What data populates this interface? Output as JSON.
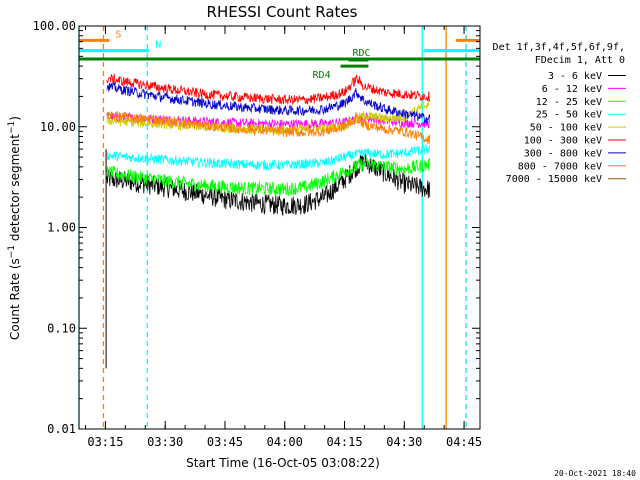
{
  "chart_data": {
    "type": "line",
    "title": "RHESSI Count Rates",
    "xlabel": "Start Time (16-Oct-05 03:08:22)",
    "ylabel_main": "Count Rate (s",
    "ylabel_sup": "−1",
    "ylabel_rest": " detector segment",
    "ylabel_end": ")",
    "y_scale": "log",
    "ylim": [
      0.01,
      100
    ],
    "xlim": [
      "03:08:22",
      "04:49:00"
    ],
    "x_ticks": [
      "03:15",
      "03:30",
      "03:45",
      "04:00",
      "04:15",
      "04:30",
      "04:45"
    ],
    "y_ticks": [
      "100.00",
      "10.00",
      "1.00",
      "0.10",
      "0.01"
    ],
    "legend_header": [
      "Det 1f,3f,4f,5f,6f,9f,",
      "FDecim 1, Att 0"
    ],
    "legend_position": "right",
    "series": [
      {
        "name": "3 - 6 keV",
        "color": "#000000",
        "x": [
          "03:16",
          "03:20",
          "03:25",
          "03:30",
          "03:35",
          "03:40",
          "03:45",
          "03:50",
          "03:55",
          "04:00",
          "04:05",
          "04:10",
          "04:15",
          "04:18",
          "04:20",
          "04:25",
          "04:30",
          "04:36"
        ],
        "values": [
          3.0,
          2.9,
          2.7,
          2.5,
          2.3,
          2.1,
          1.9,
          1.8,
          1.7,
          1.65,
          1.7,
          2.0,
          3.0,
          4.0,
          4.5,
          3.5,
          2.7,
          2.4
        ]
      },
      {
        "name": "6 - 12 keV",
        "color": "#ff00ff",
        "x": [
          "03:16",
          "03:20",
          "03:30",
          "03:40",
          "03:50",
          "04:00",
          "04:10",
          "04:15",
          "04:20",
          "04:25",
          "04:30",
          "04:36"
        ],
        "values": [
          12.5,
          12.2,
          11.8,
          11.2,
          10.8,
          10.6,
          10.7,
          11.0,
          12.5,
          11.5,
          11.0,
          10.8
        ]
      },
      {
        "name": "12 - 25 keV",
        "color": "#00ff00",
        "x": [
          "03:16",
          "03:20",
          "03:25",
          "03:30",
          "03:40",
          "03:50",
          "04:00",
          "04:05",
          "04:10",
          "04:15",
          "04:20",
          "04:25",
          "04:30",
          "04:36"
        ],
        "values": [
          3.5,
          3.3,
          3.1,
          2.9,
          2.6,
          2.45,
          2.4,
          2.5,
          2.9,
          3.6,
          4.3,
          4.0,
          3.8,
          4.2
        ]
      },
      {
        "name": "25 - 50 keV",
        "color": "#00ffff",
        "x": [
          "03:16",
          "03:20",
          "03:30",
          "03:40",
          "03:50",
          "04:00",
          "04:10",
          "04:15",
          "04:20",
          "04:25",
          "04:30",
          "04:36"
        ],
        "values": [
          5.2,
          5.0,
          4.7,
          4.4,
          4.2,
          4.15,
          4.4,
          5.0,
          5.5,
          5.3,
          5.5,
          6.0
        ]
      },
      {
        "name": "50 - 100 keV",
        "color": "#cccc00",
        "x": [
          "03:16",
          "03:20",
          "03:30",
          "03:40",
          "03:50",
          "04:00",
          "04:10",
          "04:15",
          "04:20",
          "04:25",
          "04:30",
          "04:36"
        ],
        "values": [
          11.5,
          11.2,
          10.6,
          10.0,
          9.6,
          9.3,
          9.6,
          10.3,
          13.0,
          12.0,
          12.5,
          17.0
        ]
      },
      {
        "name": "100 - 300 keV",
        "color": "#ff0000",
        "x": [
          "03:16",
          "03:20",
          "03:25",
          "03:30",
          "03:40",
          "03:50",
          "04:00",
          "04:05",
          "04:10",
          "04:15",
          "04:18",
          "04:20",
          "04:25",
          "04:30",
          "04:36"
        ],
        "values": [
          30,
          28,
          26,
          24,
          21,
          19.5,
          18.5,
          18.5,
          19.5,
          22,
          30,
          25,
          22,
          21,
          20
        ]
      },
      {
        "name": "300 - 800 keV",
        "color": "#0000cc",
        "x": [
          "03:16",
          "03:20",
          "03:25",
          "03:30",
          "03:40",
          "03:50",
          "04:00",
          "04:05",
          "04:10",
          "04:15",
          "04:18",
          "04:20",
          "04:25",
          "04:30",
          "04:36"
        ],
        "values": [
          25,
          23,
          21,
          19.5,
          17,
          15.5,
          14.5,
          14.5,
          15,
          17,
          22,
          18,
          15,
          13.5,
          12
        ]
      },
      {
        "name": "800 - 7000 keV",
        "color": "#ff8000",
        "x": [
          "03:16",
          "03:20",
          "03:30",
          "03:40",
          "03:50",
          "04:00",
          "04:05",
          "04:10",
          "04:15",
          "04:18",
          "04:20",
          "04:25",
          "04:30",
          "04:36"
        ],
        "values": [
          13,
          12.5,
          11.5,
          10.2,
          9.4,
          8.9,
          8.8,
          9.0,
          10.0,
          12.5,
          10.5,
          9.5,
          9.0,
          7.5
        ]
      },
      {
        "name": "7000 - 15000 keV",
        "color": "#a05000",
        "x": [],
        "values": []
      }
    ],
    "markers": [
      {
        "label": "S",
        "color": "#ff8000",
        "x_start": "03:08:22",
        "x_end": "03:16:00",
        "level": 72
      },
      {
        "label": "N",
        "color": "#00ffff",
        "x_start": "03:08:22",
        "x_end": "03:26:00",
        "level": 57
      },
      {
        "label": "",
        "color": "#008000",
        "x_start": "03:08:22",
        "x_end": "04:49:00",
        "level": 47
      },
      {
        "label": "RD4",
        "color": "#008000",
        "x_start": "04:14:00",
        "x_end": "04:21:00",
        "level": 40
      },
      {
        "label": "RDC",
        "color": "#008000",
        "x_start": "04:16:00",
        "x_end": "04:21:00",
        "level": 46
      },
      {
        "label": "",
        "color": "#00ffff",
        "x_start": "04:35:00",
        "x_end": "04:49:00",
        "level": 57
      },
      {
        "label": "",
        "color": "#ff8000",
        "x_start": "04:43:00",
        "x_end": "04:49:00",
        "level": 72
      }
    ],
    "vlines": [
      {
        "x": "03:08:22",
        "color": "#00ffff",
        "style": "solid"
      },
      {
        "x": "03:14:30",
        "color": "#ff8000",
        "style": "dashed"
      },
      {
        "x": "03:25:30",
        "color": "#00ffff",
        "style": "dashed"
      },
      {
        "x": "04:34:30",
        "color": "#00ffff",
        "style": "solid"
      },
      {
        "x": "04:40:30",
        "color": "#ff8000",
        "style": "solid"
      },
      {
        "x": "04:45:30",
        "color": "#ff8000",
        "style": "dashed"
      },
      {
        "x": "04:45:30",
        "color": "#00ffff",
        "style": "dashed"
      }
    ],
    "grid": false
  },
  "footer_date": "20-Oct-2021 18:40"
}
